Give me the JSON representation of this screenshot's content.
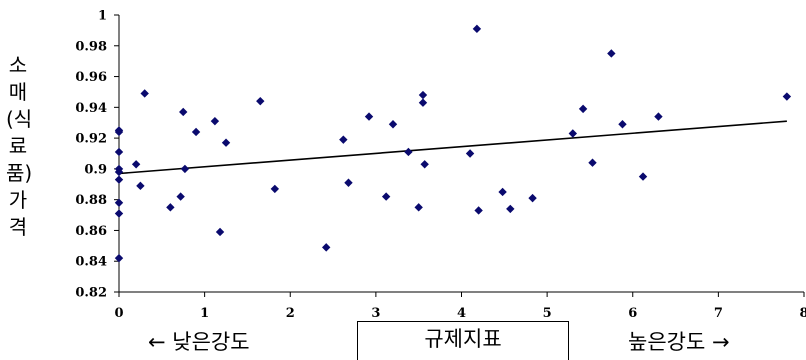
{
  "chart_data": {
    "type": "scatter",
    "xlabel": "규제지표",
    "ylabel_chars": [
      "소",
      "매",
      "(식",
      "료",
      "품)",
      "가",
      "격"
    ],
    "bottom_left": "← 낮은강도",
    "bottom_right": "높은강도 →",
    "xlim": [
      0,
      8
    ],
    "ylim": [
      0.82,
      1.0
    ],
    "x_ticks": [
      "0",
      "1",
      "2",
      "3",
      "4",
      "5",
      "6",
      "7",
      "8"
    ],
    "y_ticks": [
      "0.82",
      "0.84",
      "0.86",
      "0.88",
      "0.9",
      "0.92",
      "0.94",
      "0.96",
      "0.98",
      "1"
    ],
    "grid": false,
    "marker_color": "#0a0a6e",
    "points": [
      [
        0.0,
        0.925
      ],
      [
        0.0,
        0.924
      ],
      [
        0.0,
        0.911
      ],
      [
        0.0,
        0.9
      ],
      [
        0.0,
        0.898
      ],
      [
        0.0,
        0.893
      ],
      [
        0.0,
        0.878
      ],
      [
        0.0,
        0.871
      ],
      [
        0.0,
        0.842
      ],
      [
        0.2,
        0.903
      ],
      [
        0.25,
        0.889
      ],
      [
        0.3,
        0.949
      ],
      [
        0.6,
        0.875
      ],
      [
        0.72,
        0.882
      ],
      [
        0.75,
        0.937
      ],
      [
        0.77,
        0.9
      ],
      [
        0.9,
        0.924
      ],
      [
        1.12,
        0.931
      ],
      [
        1.18,
        0.859
      ],
      [
        1.25,
        0.917
      ],
      [
        1.65,
        0.944
      ],
      [
        1.82,
        0.887
      ],
      [
        2.42,
        0.849
      ],
      [
        2.62,
        0.919
      ],
      [
        2.68,
        0.891
      ],
      [
        2.92,
        0.934
      ],
      [
        3.12,
        0.882
      ],
      [
        3.2,
        0.929
      ],
      [
        3.38,
        0.911
      ],
      [
        3.5,
        0.875
      ],
      [
        3.55,
        0.948
      ],
      [
        3.55,
        0.943
      ],
      [
        3.57,
        0.903
      ],
      [
        4.1,
        0.91
      ],
      [
        4.18,
        0.991
      ],
      [
        4.2,
        0.873
      ],
      [
        4.48,
        0.885
      ],
      [
        4.57,
        0.874
      ],
      [
        4.83,
        0.881
      ],
      [
        5.3,
        0.923
      ],
      [
        5.42,
        0.939
      ],
      [
        5.53,
        0.904
      ],
      [
        5.75,
        0.975
      ],
      [
        5.88,
        0.929
      ],
      [
        6.12,
        0.895
      ],
      [
        6.3,
        0.934
      ],
      [
        7.8,
        0.947
      ]
    ],
    "trendline": {
      "x": [
        0,
        7.8
      ],
      "y": [
        0.897,
        0.931
      ]
    }
  }
}
